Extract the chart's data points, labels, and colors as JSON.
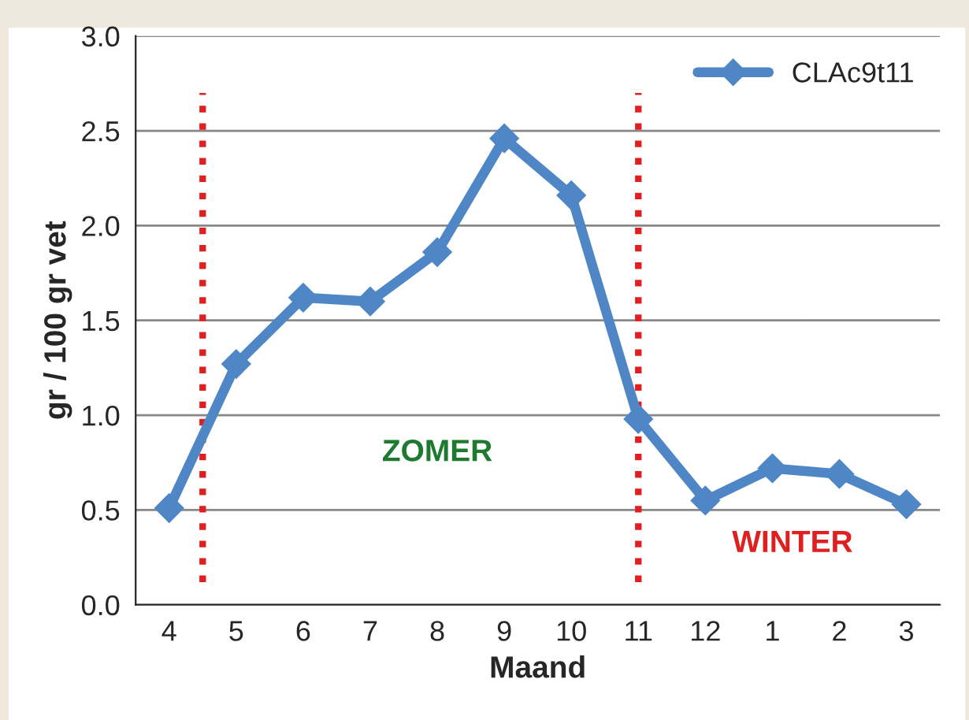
{
  "chart_data": {
    "type": "line",
    "xlabel": "Maand",
    "ylabel": "gr / 100 gr vet",
    "categories": [
      "4",
      "5",
      "6",
      "7",
      "8",
      "9",
      "10",
      "11",
      "12",
      "1",
      "2",
      "3"
    ],
    "series": [
      {
        "name": "CLAc9t11",
        "color": "#4f86c6",
        "values": [
          0.51,
          1.27,
          1.62,
          1.6,
          1.86,
          2.46,
          2.16,
          0.98,
          0.55,
          0.72,
          0.69,
          0.53
        ]
      }
    ],
    "ylim": [
      0,
      3
    ],
    "yticks": [
      {
        "value": 0,
        "label": "0.0"
      },
      {
        "value": 0.5,
        "label": "0.5"
      },
      {
        "value": 1,
        "label": "1.0"
      },
      {
        "value": 1.5,
        "label": "1.5"
      },
      {
        "value": 2,
        "label": "2.0"
      },
      {
        "value": 2.5,
        "label": "2.5"
      },
      {
        "value": 3,
        "label": "3.0"
      }
    ],
    "ref_lines": [
      {
        "axis": "x",
        "value": "11",
        "color": "#e02020",
        "line_style": "dotted"
      }
    ],
    "annotations": [
      "ZOMER",
      "WINTER"
    ],
    "grid": "y",
    "legend": "top right",
    "marker": "diamond",
    "line_style": "solid"
  }
}
